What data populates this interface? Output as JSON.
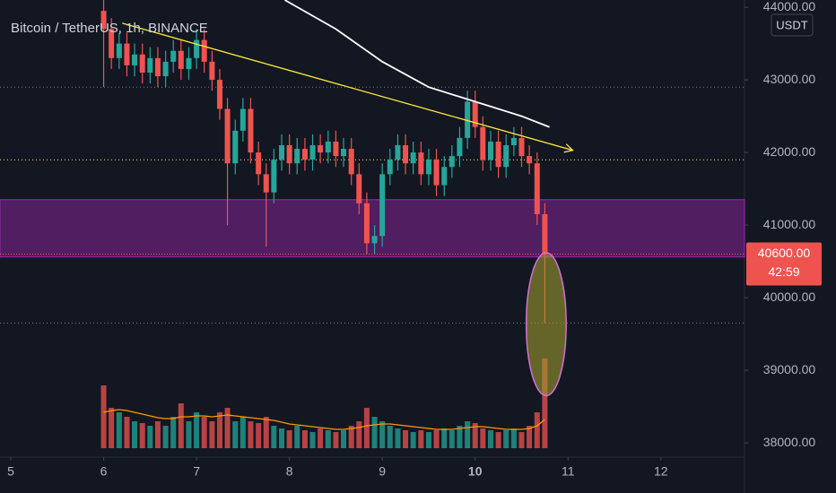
{
  "chart_data": {
    "type": "candlestick",
    "title": "Bitcoin / TetherUS, 1h, BINANCE",
    "currency": "USDT",
    "x": [
      6,
      6.083,
      6.167,
      6.25,
      6.333,
      6.417,
      6.5,
      6.583,
      6.667,
      6.75,
      6.833,
      6.917,
      7,
      7.083,
      7.167,
      7.25,
      7.333,
      7.417,
      7.5,
      7.583,
      7.667,
      7.75,
      7.833,
      7.917,
      8,
      8.083,
      8.167,
      8.25,
      8.333,
      8.417,
      8.5,
      8.583,
      8.667,
      8.75,
      8.833,
      8.917,
      9,
      9.083,
      9.167,
      9.25,
      9.333,
      9.417,
      9.5,
      9.583,
      9.667,
      9.75,
      9.833,
      9.917,
      10,
      10.083,
      10.167,
      10.25,
      10.333,
      10.417,
      10.5,
      10.583,
      10.667,
      10.75
    ],
    "open": [
      43950,
      43700,
      43300,
      43500,
      43200,
      43350,
      43100,
      43300,
      43050,
      43250,
      43400,
      43150,
      43300,
      43550,
      43250,
      43000,
      42600,
      41850,
      42300,
      42600,
      42000,
      41700,
      41450,
      41900,
      42100,
      41850,
      42050,
      41900,
      42100,
      42000,
      42150,
      41950,
      42050,
      41700,
      41300,
      40750,
      40850,
      41700,
      41900,
      42100,
      41850,
      42000,
      41700,
      41900,
      41550,
      41800,
      41950,
      42200,
      42700,
      42350,
      41900,
      42150,
      41800,
      42100,
      42200,
      41950,
      41850,
      41150
    ],
    "high": [
      44100,
      43850,
      43650,
      43650,
      43500,
      43500,
      43450,
      43450,
      43400,
      43550,
      43550,
      43450,
      43700,
      43700,
      43400,
      43150,
      42750,
      42450,
      42750,
      42750,
      42150,
      41850,
      42050,
      42250,
      42250,
      42200,
      42200,
      42250,
      42250,
      42300,
      42300,
      42200,
      42200,
      41850,
      41450,
      41000,
      41850,
      42050,
      42250,
      42250,
      42150,
      42150,
      42050,
      42050,
      41950,
      42100,
      42350,
      42850,
      42850,
      42500,
      42300,
      42300,
      42250,
      42350,
      42350,
      42100,
      42000,
      41300
    ],
    "low": [
      42900,
      43150,
      43150,
      43050,
      43050,
      42950,
      42950,
      42900,
      42900,
      43100,
      43000,
      43000,
      43150,
      43100,
      42850,
      42450,
      41000,
      41700,
      42150,
      41850,
      41550,
      40700,
      41300,
      41750,
      41700,
      41700,
      41750,
      41750,
      41850,
      41850,
      41800,
      41800,
      41550,
      41150,
      40600,
      40600,
      40700,
      41550,
      41750,
      41700,
      41700,
      41550,
      41550,
      41400,
      41400,
      41650,
      41800,
      42050,
      42200,
      41750,
      41750,
      41650,
      41650,
      41950,
      41800,
      41700,
      41000,
      39650
    ],
    "close": [
      43700,
      43300,
      43500,
      43200,
      43350,
      43100,
      43300,
      43050,
      43250,
      43400,
      43150,
      43300,
      43550,
      43250,
      43000,
      42600,
      41850,
      42300,
      42600,
      42000,
      41700,
      41450,
      41900,
      42100,
      41850,
      42050,
      41900,
      42100,
      42000,
      42150,
      41950,
      42050,
      41700,
      41300,
      40750,
      40850,
      41700,
      41900,
      42100,
      41850,
      42000,
      41700,
      41900,
      41550,
      41800,
      41950,
      42200,
      42700,
      42350,
      41900,
      42150,
      41800,
      42100,
      42200,
      41950,
      41850,
      41150,
      40600
    ],
    "volume": [
      70,
      45,
      40,
      35,
      30,
      28,
      25,
      30,
      25,
      35,
      50,
      30,
      40,
      35,
      30,
      40,
      45,
      30,
      35,
      30,
      28,
      35,
      25,
      22,
      20,
      25,
      20,
      18,
      22,
      20,
      18,
      20,
      25,
      30,
      45,
      35,
      30,
      25,
      22,
      20,
      18,
      20,
      18,
      20,
      22,
      20,
      25,
      30,
      28,
      22,
      20,
      18,
      20,
      22,
      18,
      25,
      40,
      100
    ],
    "volume_ma": [
      40,
      42,
      43,
      42,
      40,
      38,
      36,
      34,
      33,
      33,
      35,
      35,
      36,
      36,
      35,
      36,
      37,
      36,
      35,
      34,
      33,
      32,
      31,
      29,
      27,
      26,
      25,
      24,
      23,
      22,
      21,
      21,
      22,
      23,
      25,
      26,
      27,
      27,
      26,
      25,
      24,
      23,
      22,
      21,
      21,
      21,
      22,
      23,
      24,
      24,
      23,
      22,
      21,
      21,
      21,
      22,
      25,
      32
    ],
    "vlim": [
      0,
      130
    ],
    "up_color": "#26a69a",
    "down_color": "#ef5350",
    "moving_average": {
      "color": "#ffffff",
      "x": [
        7.95,
        8.5,
        9,
        9.5,
        10,
        10.5,
        10.8
      ],
      "y": [
        44100,
        43700,
        43250,
        42900,
        42700,
        42500,
        42350
      ]
    },
    "trendline": {
      "color": "#ffeb3b",
      "x": [
        6.2,
        11.05
      ],
      "y": [
        43780,
        42030
      ]
    },
    "zone": {
      "color": "#9c27b0",
      "y": [
        40560,
        41350
      ]
    },
    "levels": [
      {
        "value": 42900,
        "color": "#787b86"
      },
      {
        "value": 41900,
        "color": "#ffeb3b"
      },
      {
        "value": 39650,
        "color": "#787b86"
      }
    ],
    "highlight": {
      "color": "#9e9a2e",
      "x": [
        10.55,
        10.98
      ],
      "y": [
        38650,
        40620
      ]
    },
    "price_label": {
      "value": 40600,
      "label": "40600.00"
    },
    "countdown": "42:59",
    "xlim": [
      4.884,
      12.9
    ],
    "ylim": [
      37680,
      44100
    ],
    "xticks": [
      5,
      6,
      7,
      8,
      9,
      10,
      11,
      12
    ],
    "yticks": [
      {
        "value": 44000,
        "label": "44000.00"
      },
      {
        "value": 43000,
        "label": "43000.00"
      },
      {
        "value": 42000,
        "label": "42000.00"
      },
      {
        "value": 41000,
        "label": "41000.00"
      },
      {
        "value": 40000,
        "label": "40000.00"
      },
      {
        "value": 39000,
        "label": "39000.00"
      },
      {
        "value": 38000,
        "label": "38000.00"
      }
    ]
  }
}
